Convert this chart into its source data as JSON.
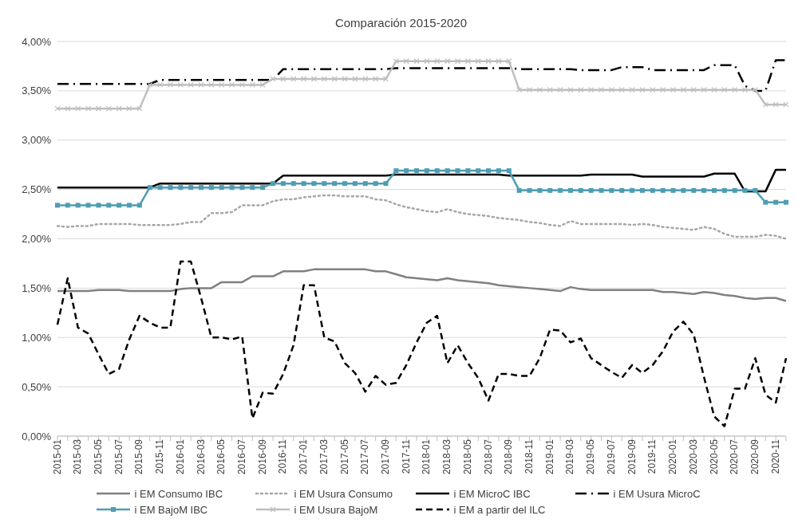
{
  "chart_data": {
    "type": "line",
    "title": "Comparación 2015-2020",
    "categories": [
      "2015-01",
      null,
      "2015-03",
      null,
      "2015-05",
      null,
      "2015-07",
      null,
      "2015-09",
      null,
      "2015-11",
      null,
      "2016-01",
      null,
      "2016-03",
      null,
      "2016-05",
      null,
      "2016-07",
      null,
      "2016-09",
      null,
      "2016-11",
      null,
      "2017-01",
      null,
      "2017-03",
      null,
      "2017-05",
      null,
      "2017-07",
      null,
      "2017-09",
      null,
      "2017-11",
      null,
      "2018-01",
      null,
      "2018-03",
      null,
      "2018-05",
      null,
      "2018-07",
      null,
      "2018-09",
      null,
      "2018-11",
      null,
      "2019-01",
      null,
      "2019-03",
      null,
      "2019-05",
      null,
      "2019-07",
      null,
      "2019-09",
      null,
      "2019-11",
      null,
      "2020-01",
      null,
      "2020-03",
      null,
      "2020-05",
      null,
      "2020-07",
      null,
      "2020-09",
      null,
      "2020-11",
      null
    ],
    "ylim": [
      0,
      4
    ],
    "yticks": [
      {
        "value": 0,
        "label": "0,00%"
      },
      {
        "value": 0.5,
        "label": "0,50%"
      },
      {
        "value": 1,
        "label": "1,00%"
      },
      {
        "value": 1.5,
        "label": "1,50%"
      },
      {
        "value": 2,
        "label": "2,00%"
      },
      {
        "value": 2.5,
        "label": "2,50%"
      },
      {
        "value": 3,
        "label": "3,00%"
      },
      {
        "value": 3.5,
        "label": "3,50%"
      },
      {
        "value": 4,
        "label": "4,00%"
      }
    ],
    "grid": "y",
    "legend": "bottom",
    "marker": "none",
    "series": [
      {
        "name": "i EM Consumo IBC",
        "color": "#808080",
        "line_style": "solid",
        "values": [
          1.47,
          1.47,
          1.47,
          1.47,
          1.48,
          1.48,
          1.48,
          1.47,
          1.47,
          1.47,
          1.47,
          1.47,
          1.49,
          1.5,
          1.5,
          1.5,
          1.56,
          1.56,
          1.56,
          1.62,
          1.62,
          1.62,
          1.67,
          1.67,
          1.67,
          1.69,
          1.69,
          1.69,
          1.69,
          1.69,
          1.69,
          1.67,
          1.67,
          1.64,
          1.61,
          1.6,
          1.59,
          1.58,
          1.6,
          1.58,
          1.57,
          1.56,
          1.55,
          1.53,
          1.52,
          1.51,
          1.5,
          1.49,
          1.48,
          1.47,
          1.51,
          1.49,
          1.48,
          1.48,
          1.48,
          1.48,
          1.48,
          1.48,
          1.48,
          1.46,
          1.46,
          1.45,
          1.44,
          1.46,
          1.45,
          1.43,
          1.42,
          1.4,
          1.39,
          1.4,
          1.4,
          1.37
        ]
      },
      {
        "name": "i EM Usura Consumo",
        "color": "#a6a6a6",
        "line_style": "dotted",
        "values": [
          2.13,
          2.12,
          2.13,
          2.13,
          2.15,
          2.15,
          2.15,
          2.15,
          2.14,
          2.14,
          2.14,
          2.14,
          2.15,
          2.17,
          2.17,
          2.26,
          2.26,
          2.27,
          2.34,
          2.34,
          2.34,
          2.38,
          2.4,
          2.4,
          2.42,
          2.43,
          2.44,
          2.44,
          2.43,
          2.43,
          2.43,
          2.4,
          2.39,
          2.35,
          2.32,
          2.3,
          2.28,
          2.27,
          2.3,
          2.27,
          2.25,
          2.24,
          2.23,
          2.21,
          2.2,
          2.19,
          2.17,
          2.16,
          2.14,
          2.13,
          2.18,
          2.15,
          2.15,
          2.15,
          2.15,
          2.15,
          2.14,
          2.15,
          2.14,
          2.12,
          2.11,
          2.1,
          2.09,
          2.12,
          2.1,
          2.05,
          2.02,
          2.02,
          2.02,
          2.04,
          2.03,
          2.0
        ]
      },
      {
        "name": "i EM MicroC IBC",
        "color": "#000000",
        "line_style": "solid",
        "values": [
          2.52,
          2.52,
          2.52,
          2.52,
          2.52,
          2.52,
          2.52,
          2.52,
          2.52,
          2.52,
          2.56,
          2.56,
          2.56,
          2.56,
          2.56,
          2.56,
          2.56,
          2.56,
          2.56,
          2.56,
          2.56,
          2.56,
          2.64,
          2.64,
          2.64,
          2.64,
          2.64,
          2.64,
          2.64,
          2.64,
          2.64,
          2.64,
          2.64,
          2.65,
          2.65,
          2.65,
          2.65,
          2.65,
          2.65,
          2.65,
          2.65,
          2.65,
          2.65,
          2.65,
          2.64,
          2.64,
          2.64,
          2.64,
          2.64,
          2.64,
          2.64,
          2.64,
          2.65,
          2.65,
          2.65,
          2.65,
          2.65,
          2.63,
          2.63,
          2.63,
          2.63,
          2.63,
          2.63,
          2.63,
          2.66,
          2.66,
          2.66,
          2.48,
          2.48,
          2.48,
          2.7,
          2.7
        ]
      },
      {
        "name": "i EM  Usura MicroC",
        "color": "#000000",
        "line_style": "dashdot",
        "values": [
          3.57,
          3.57,
          3.57,
          3.57,
          3.57,
          3.57,
          3.57,
          3.57,
          3.57,
          3.57,
          3.61,
          3.61,
          3.61,
          3.61,
          3.61,
          3.61,
          3.61,
          3.61,
          3.61,
          3.61,
          3.61,
          3.61,
          3.72,
          3.72,
          3.72,
          3.72,
          3.72,
          3.72,
          3.72,
          3.72,
          3.72,
          3.72,
          3.72,
          3.73,
          3.73,
          3.73,
          3.73,
          3.73,
          3.73,
          3.73,
          3.73,
          3.73,
          3.73,
          3.73,
          3.73,
          3.72,
          3.72,
          3.72,
          3.72,
          3.72,
          3.72,
          3.71,
          3.71,
          3.71,
          3.71,
          3.74,
          3.74,
          3.74,
          3.71,
          3.71,
          3.71,
          3.71,
          3.71,
          3.71,
          3.76,
          3.76,
          3.76,
          3.55,
          3.5,
          3.5,
          3.81,
          3.81
        ]
      },
      {
        "name": "i EM BajoM IBC",
        "color": "#4f9db3",
        "line_style": "solid",
        "marker": "square",
        "values": [
          2.34,
          2.34,
          2.34,
          2.34,
          2.34,
          2.34,
          2.34,
          2.34,
          2.34,
          2.52,
          2.52,
          2.52,
          2.52,
          2.52,
          2.52,
          2.52,
          2.52,
          2.52,
          2.52,
          2.52,
          2.52,
          2.56,
          2.56,
          2.56,
          2.56,
          2.56,
          2.56,
          2.56,
          2.56,
          2.56,
          2.56,
          2.56,
          2.56,
          2.69,
          2.69,
          2.69,
          2.69,
          2.69,
          2.69,
          2.69,
          2.69,
          2.69,
          2.69,
          2.69,
          2.69,
          2.49,
          2.49,
          2.49,
          2.49,
          2.49,
          2.49,
          2.49,
          2.49,
          2.49,
          2.49,
          2.49,
          2.49,
          2.49,
          2.49,
          2.49,
          2.49,
          2.49,
          2.49,
          2.49,
          2.49,
          2.49,
          2.49,
          2.49,
          2.49,
          2.37,
          2.37,
          2.37
        ]
      },
      {
        "name": "i EM Usura BajoM",
        "color": "#bfbfbf",
        "line_style": "solid",
        "marker": "cross",
        "values": [
          3.32,
          3.32,
          3.32,
          3.32,
          3.32,
          3.32,
          3.32,
          3.32,
          3.32,
          3.56,
          3.56,
          3.56,
          3.56,
          3.56,
          3.56,
          3.56,
          3.56,
          3.56,
          3.56,
          3.56,
          3.56,
          3.62,
          3.62,
          3.62,
          3.62,
          3.62,
          3.62,
          3.62,
          3.62,
          3.62,
          3.62,
          3.62,
          3.62,
          3.8,
          3.8,
          3.8,
          3.8,
          3.8,
          3.8,
          3.8,
          3.8,
          3.8,
          3.8,
          3.8,
          3.8,
          3.51,
          3.51,
          3.51,
          3.51,
          3.51,
          3.51,
          3.51,
          3.51,
          3.51,
          3.51,
          3.51,
          3.51,
          3.51,
          3.51,
          3.51,
          3.51,
          3.51,
          3.51,
          3.51,
          3.51,
          3.51,
          3.51,
          3.51,
          3.51,
          3.36,
          3.36,
          3.36
        ]
      },
      {
        "name": "i EM a partir del ILC",
        "color": "#000000",
        "line_style": "dashed",
        "values": [
          1.13,
          1.6,
          1.1,
          1.04,
          0.83,
          0.63,
          0.68,
          0.98,
          1.22,
          1.15,
          1.1,
          1.1,
          1.77,
          1.77,
          1.4,
          1.0,
          1.0,
          0.98,
          1.01,
          0.18,
          0.44,
          0.43,
          0.63,
          0.92,
          1.53,
          1.53,
          1.0,
          0.96,
          0.74,
          0.64,
          0.45,
          0.61,
          0.52,
          0.54,
          0.72,
          0.95,
          1.15,
          1.22,
          0.74,
          0.92,
          0.74,
          0.59,
          0.36,
          0.63,
          0.63,
          0.61,
          0.61,
          0.79,
          1.08,
          1.07,
          0.95,
          0.99,
          0.79,
          0.72,
          0.65,
          0.59,
          0.72,
          0.64,
          0.72,
          0.86,
          1.06,
          1.16,
          1.03,
          0.6,
          0.2,
          0.1,
          0.48,
          0.48,
          0.79,
          0.42,
          0.34,
          0.79
        ]
      }
    ]
  }
}
